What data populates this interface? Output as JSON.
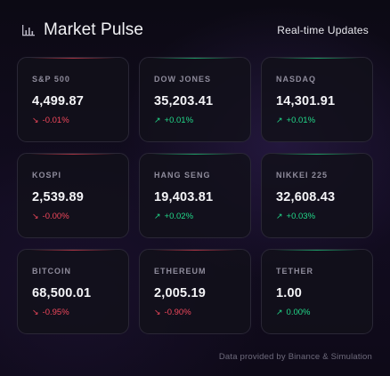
{
  "header": {
    "title": "Market Pulse",
    "subtitle": "Real-time Updates",
    "icon": "bar-chart-icon"
  },
  "colors": {
    "down": "#f0475b",
    "up": "#22d98a",
    "accent_down": "#c0394a",
    "accent_up": "#1fae72"
  },
  "markets": [
    {
      "name": "S&P 500",
      "price": "4,499.87",
      "change": "-0.01%",
      "direction": "down"
    },
    {
      "name": "DOW JONES",
      "price": "35,203.41",
      "change": "+0.01%",
      "direction": "up"
    },
    {
      "name": "NASDAQ",
      "price": "14,301.91",
      "change": "+0.01%",
      "direction": "up"
    },
    {
      "name": "KOSPI",
      "price": "2,539.89",
      "change": "-0.00%",
      "direction": "down"
    },
    {
      "name": "HANG SENG",
      "price": "19,403.81",
      "change": "+0.02%",
      "direction": "up"
    },
    {
      "name": "NIKKEI 225",
      "price": "32,608.43",
      "change": "+0.03%",
      "direction": "up"
    },
    {
      "name": "BITCOIN",
      "price": "68,500.01",
      "change": "-0.95%",
      "direction": "down"
    },
    {
      "name": "ETHEREUM",
      "price": "2,005.19",
      "change": "-0.90%",
      "direction": "down"
    },
    {
      "name": "TETHER",
      "price": "1.00",
      "change": "0.00%",
      "direction": "up"
    }
  ],
  "footer": {
    "text": "Data provided by Binance & Simulation"
  }
}
